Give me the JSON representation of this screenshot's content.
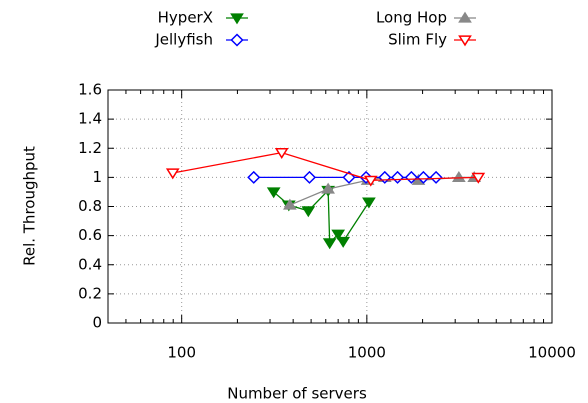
{
  "chart_data": {
    "type": "line",
    "x_label": "Number of servers",
    "y_label": "Rel. Throughput",
    "xscale": "log",
    "xlim": [
      40,
      10000
    ],
    "xticks": [
      100,
      1000,
      10000
    ],
    "ylim": [
      0,
      1.6
    ],
    "yticks": [
      0,
      0.2,
      0.4,
      0.6,
      0.8,
      1,
      1.2,
      1.4,
      1.6
    ],
    "grid": true,
    "legend": "top",
    "series": [
      {
        "name": "HyperX",
        "color": "#008000",
        "marker": "triangle-down",
        "filled": true,
        "x": [
          314,
          379,
          483,
          618,
          630,
          700,
          745,
          1026
        ],
        "values": [
          0.9,
          0.81,
          0.77,
          0.91,
          0.55,
          0.61,
          0.56,
          0.83
        ]
      },
      {
        "name": "Long Hop",
        "color": "#888888",
        "marker": "triangle-up",
        "filled": true,
        "x": [
          384,
          618,
          1010,
          1250,
          1900,
          3140,
          3800
        ],
        "values": [
          0.81,
          0.92,
          0.98,
          1.0,
          0.98,
          1.0,
          1.0
        ]
      },
      {
        "name": "Jellyfish",
        "color": "#0000ff",
        "marker": "diamond",
        "filled": false,
        "x": [
          245,
          490,
          801,
          990,
          1250,
          1465,
          1740,
          2020,
          2365
        ],
        "values": [
          1,
          1,
          1,
          1,
          1,
          1,
          1,
          1,
          1
        ]
      },
      {
        "name": "Slim Fly",
        "color": "#ff0000",
        "marker": "triangle-down",
        "filled": false,
        "x": [
          89.5,
          347,
          1050,
          4000
        ],
        "values": [
          1.03,
          1.17,
          0.98,
          1.0
        ]
      }
    ]
  }
}
